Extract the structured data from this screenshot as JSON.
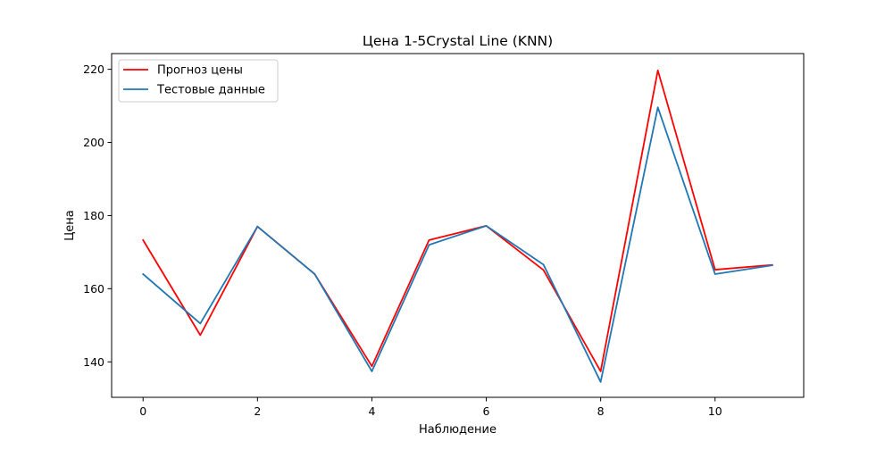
{
  "chart_data": {
    "type": "line",
    "title": "Цена 1-5Crystal Line (KNN)",
    "xlabel": "Наблюдение",
    "ylabel": "Цена",
    "xlim": [
      -0.55,
      11.55
    ],
    "ylim": [
      130.3,
      224.3
    ],
    "xticks": [
      0,
      2,
      4,
      6,
      8,
      10
    ],
    "yticks": [
      140,
      160,
      180,
      200,
      220
    ],
    "x": [
      0,
      1,
      2,
      3,
      4,
      5,
      6,
      7,
      8,
      9,
      10,
      11
    ],
    "series": [
      {
        "name": "Прогноз цены",
        "color": "#ff0000",
        "values": [
          173.3,
          147.3,
          177.0,
          164.0,
          138.8,
          173.3,
          177.2,
          165.1,
          137.4,
          219.7,
          165.2,
          166.5
        ]
      },
      {
        "name": "Тестовые данные",
        "color": "#1f77b4",
        "values": [
          164.0,
          150.5,
          177.0,
          164.0,
          137.4,
          172.0,
          177.2,
          166.6,
          134.5,
          209.6,
          164.0,
          166.4
        ]
      }
    ],
    "grid": false,
    "legend": "upper left"
  }
}
